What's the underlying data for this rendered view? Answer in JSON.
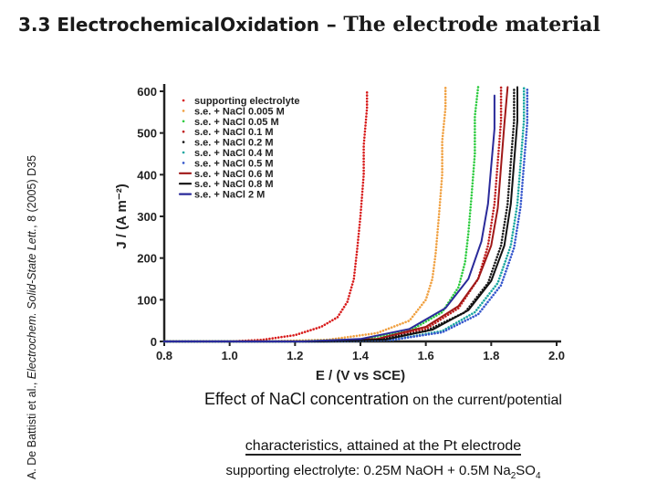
{
  "slide": {
    "title_part1": "3.3 Electrochemical",
    "title_part2": "Oxidation",
    "title_part3": " – ",
    "title_part4": "The electrode material",
    "citation_authors": "A. De Battisti et al., ",
    "citation_journal": "Electrochem. Solid-State Lett.",
    "citation_rest": ", 8 (2005) D35"
  },
  "caption": {
    "line1_a": "Effect of NaCl concentration",
    "line1_b": " on the current/potential",
    "line2": "characteristics, attained at the Pt electrode",
    "line3_a": "supporting electrolyte: 0.25M NaOH + 0.5M Na",
    "line3_sub1": "2",
    "line3_b": "SO",
    "line3_sub2": "4"
  },
  "chart_data": {
    "type": "line",
    "xlabel": "E / (V vs SCE)",
    "ylabel": "J / (A m⁻²)",
    "xlim": [
      0.8,
      2.0
    ],
    "ylim": [
      0,
      600
    ],
    "xticks": [
      0.8,
      1.0,
      1.2,
      1.4,
      1.6,
      1.8,
      2.0
    ],
    "yticks": [
      0,
      100,
      200,
      300,
      400,
      500,
      600
    ],
    "grid": false,
    "legend_position": "top-left inside",
    "series": [
      {
        "name": "supporting electrolyte",
        "color": "#d81b1b",
        "style": "dotted",
        "x": [
          0.8,
          1.0,
          1.1,
          1.2,
          1.28,
          1.33,
          1.36,
          1.38,
          1.39,
          1.4,
          1.41,
          1.41,
          1.42,
          1.42
        ],
        "y": [
          0,
          0,
          4,
          15,
          35,
          58,
          95,
          150,
          220,
          300,
          400,
          470,
          560,
          600
        ]
      },
      {
        "name": "s.e. + NaCl 0.005 M",
        "color": "#f0a040",
        "style": "dotted",
        "x": [
          0.8,
          1.1,
          1.3,
          1.45,
          1.55,
          1.6,
          1.62,
          1.63,
          1.64,
          1.65,
          1.65,
          1.66,
          1.66
        ],
        "y": [
          0,
          0,
          4,
          20,
          50,
          100,
          150,
          210,
          300,
          400,
          480,
          560,
          610
        ]
      },
      {
        "name": "s.e. + NaCl 0.05 M",
        "color": "#2ecc40",
        "style": "dotted",
        "x": [
          0.8,
          1.2,
          1.4,
          1.55,
          1.65,
          1.7,
          1.72,
          1.73,
          1.74,
          1.75,
          1.75,
          1.76
        ],
        "y": [
          0,
          0,
          5,
          25,
          70,
          130,
          190,
          260,
          350,
          450,
          540,
          610
        ]
      },
      {
        "name": "s.e. + NaCl 0.1 M",
        "color": "#c02020",
        "style": "dotted",
        "x": [
          0.8,
          1.25,
          1.45,
          1.6,
          1.7,
          1.76,
          1.79,
          1.81,
          1.82,
          1.83,
          1.83
        ],
        "y": [
          0,
          0,
          5,
          30,
          80,
          150,
          230,
          330,
          430,
          530,
          610
        ]
      },
      {
        "name": "s.e. + NaCl 0.2 M",
        "color": "#1a1a1a",
        "style": "dotted",
        "x": [
          0.8,
          1.25,
          1.45,
          1.6,
          1.72,
          1.79,
          1.83,
          1.85,
          1.86,
          1.87,
          1.87
        ],
        "y": [
          0,
          0,
          4,
          25,
          70,
          140,
          230,
          330,
          430,
          530,
          610
        ]
      },
      {
        "name": "s.e. + NaCl 0.4 M",
        "color": "#1aa7a0",
        "style": "dotted",
        "x": [
          0.8,
          1.3,
          1.5,
          1.65,
          1.75,
          1.82,
          1.86,
          1.88,
          1.89,
          1.9,
          1.9
        ],
        "y": [
          0,
          0,
          4,
          25,
          70,
          140,
          230,
          330,
          430,
          530,
          610
        ]
      },
      {
        "name": "s.e. + NaCl 0.5 M",
        "color": "#3355cc",
        "style": "dotted",
        "x": [
          0.8,
          1.3,
          1.5,
          1.65,
          1.76,
          1.83,
          1.87,
          1.89,
          1.9,
          1.91,
          1.91
        ],
        "y": [
          0,
          0,
          4,
          22,
          65,
          135,
          225,
          325,
          425,
          525,
          610
        ]
      },
      {
        "name": "s.e. + NaCl 0.6 M",
        "color": "#a01818",
        "style": "solid",
        "x": [
          0.8,
          1.25,
          1.45,
          1.6,
          1.7,
          1.76,
          1.8,
          1.82,
          1.83,
          1.84,
          1.85
        ],
        "y": [
          0,
          0,
          6,
          35,
          85,
          150,
          230,
          320,
          420,
          520,
          610
        ]
      },
      {
        "name": "s.e. + NaCl 0.8 M",
        "color": "#111111",
        "style": "solid",
        "x": [
          0.8,
          1.28,
          1.48,
          1.62,
          1.73,
          1.8,
          1.84,
          1.86,
          1.87,
          1.88,
          1.88
        ],
        "y": [
          0,
          0,
          5,
          28,
          75,
          145,
          230,
          330,
          430,
          530,
          610
        ]
      },
      {
        "name": "s.e. + NaCl 2 M",
        "color": "#2a2a9a",
        "style": "solid",
        "x": [
          0.8,
          1.22,
          1.4,
          1.55,
          1.66,
          1.73,
          1.77,
          1.79,
          1.8,
          1.81,
          1.81
        ],
        "y": [
          0,
          0,
          6,
          30,
          80,
          150,
          240,
          330,
          420,
          510,
          590
        ]
      }
    ]
  }
}
